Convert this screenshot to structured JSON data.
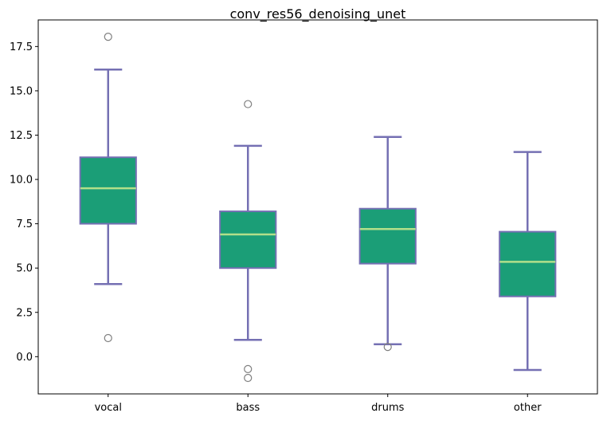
{
  "chart_data": {
    "type": "box",
    "title": "conv_res56_denoising_unet",
    "xlabel": "",
    "ylabel": "",
    "ylim": [
      -2.1,
      19.0
    ],
    "yticks": [
      0.0,
      2.5,
      5.0,
      7.5,
      10.0,
      12.5,
      15.0,
      17.5
    ],
    "ytick_labels": [
      "0.0",
      "2.5",
      "5.0",
      "7.5",
      "10.0",
      "12.5",
      "15.0",
      "17.5"
    ],
    "categories": [
      "vocal",
      "bass",
      "drums",
      "other"
    ],
    "boxes": [
      {
        "label": "vocal",
        "whisker_low": 4.1,
        "q1": 7.5,
        "median": 9.5,
        "q3": 11.25,
        "whisker_high": 16.2,
        "outliers": [
          18.05,
          1.05
        ]
      },
      {
        "label": "bass",
        "whisker_low": 0.95,
        "q1": 5.0,
        "median": 6.9,
        "q3": 8.2,
        "whisker_high": 11.9,
        "outliers": [
          14.25,
          -0.7,
          -1.2
        ]
      },
      {
        "label": "drums",
        "whisker_low": 0.7,
        "q1": 5.25,
        "median": 7.2,
        "q3": 8.35,
        "whisker_high": 12.4,
        "outliers": [
          0.55
        ]
      },
      {
        "label": "other",
        "whisker_low": -0.75,
        "q1": 3.4,
        "median": 5.35,
        "q3": 7.05,
        "whisker_high": 11.55,
        "outliers": []
      }
    ],
    "grid": false,
    "colors": {
      "box_fill": "#1b9e77",
      "box_edge": "#7570b3",
      "whisker": "#7570b3",
      "median": "#b2df8a",
      "outlier_edge": "#7f7f7f"
    }
  }
}
